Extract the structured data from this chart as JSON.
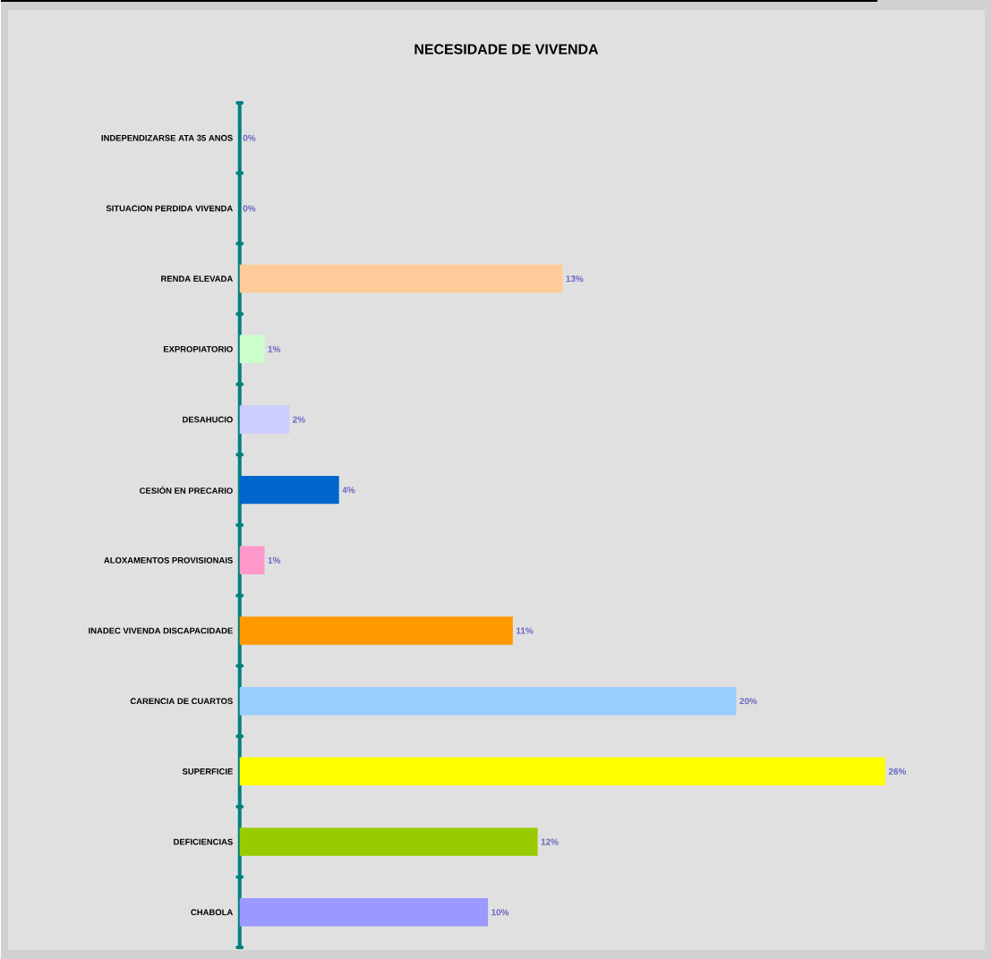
{
  "chart_data": {
    "type": "bar",
    "orientation": "horizontal",
    "title": "NECESIDADE DE VIVENDA",
    "categories": [
      "INDEPENDIZARSE ATA 35 ANOS",
      "SITUACION PERDIDA VIVENDA",
      "RENDA ELEVADA",
      "EXPROPIATORIO",
      "DESAHUCIO",
      "CESIÓN EN PRECARIO",
      "ALOXAMENTOS PROVISIONAIS",
      "INADEC VIVENDA DISCAPACIDADE",
      "CARENCIA DE CUARTOS",
      "SUPERFICIE",
      "DEFICIENCIAS",
      "CHABOLA"
    ],
    "values": [
      0,
      0,
      13,
      1,
      2,
      4,
      1,
      11,
      20,
      26,
      12,
      10
    ],
    "colors": [
      "#9999ff",
      "#9999ff",
      "#ffcc99",
      "#ccffcc",
      "#ccccff",
      "#0066cc",
      "#ff99cc",
      "#ff9900",
      "#99ccff",
      "#ffff00",
      "#99cc00",
      "#9999ff"
    ],
    "value_labels": [
      "0%",
      "0%",
      "13%",
      "1%",
      "2%",
      "4%",
      "1%",
      "11%",
      "20%",
      "26%",
      "12%",
      "10%"
    ]
  }
}
